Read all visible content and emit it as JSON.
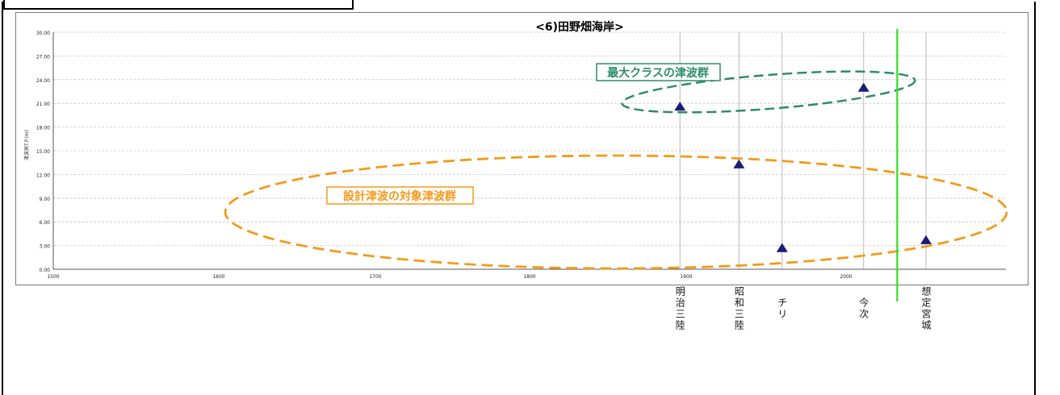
{
  "chart_data": {
    "type": "scatter",
    "title": "<6)田野畑海岸>",
    "ylabel": "津波高T.P.(m)",
    "xlabel": "",
    "xlim": [
      1500,
      2100
    ],
    "ylim": [
      0,
      30
    ],
    "x_ticks": [
      "1500",
      "1600",
      "1700",
      "1800",
      "1900",
      "2000"
    ],
    "y_ticks": [
      "0.00",
      "3.00",
      "6.00",
      "9.00",
      "12.00",
      "15.00",
      "18.00",
      "21.00",
      "24.00",
      "27.00",
      "30.00"
    ],
    "grid": true,
    "points": [
      {
        "x": 1896,
        "y": 20.5
      },
      {
        "x": 1933,
        "y": 13.2
      },
      {
        "x": 1960,
        "y": 2.6
      },
      {
        "x": 2011,
        "y": 22.9
      },
      {
        "x": 2050,
        "y": 3.6
      }
    ],
    "event_lines": [
      {
        "x": 1896,
        "label": "明治三陸"
      },
      {
        "x": 1933,
        "label": "昭和三陸"
      },
      {
        "x": 1960,
        "label": "チリ"
      },
      {
        "x": 2011,
        "label": "今次"
      },
      {
        "x": 2050,
        "label": "想定宮城"
      }
    ],
    "highlight_line_x": 2032,
    "group_labels": {
      "max_class": "最大クラスの津波群",
      "design": "設計津波の対象津波群"
    },
    "colors": {
      "marker": "#1c1c78",
      "max_class": "#2e8b6a",
      "design": "#f39a1c",
      "highlight": "#33dd22",
      "grid": "#c8c8c8"
    }
  }
}
